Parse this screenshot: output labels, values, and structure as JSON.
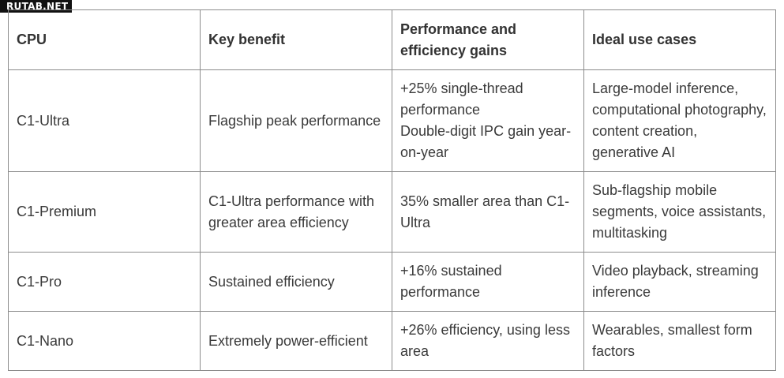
{
  "watermark": "RUTAB.NET",
  "table": {
    "headers": {
      "cpu": "CPU",
      "key_benefit": "Key benefit",
      "gains": "Performance and efficiency gains",
      "use_cases": "Ideal use cases"
    },
    "rows": [
      {
        "cpu": "C1-Ultra",
        "key_benefit": "Flagship peak performance",
        "gains": [
          "+25% single-thread performance",
          "Double-digit IPC gain year-on-year"
        ],
        "use_cases": "Large-model inference, computational photography, content creation, generative AI"
      },
      {
        "cpu": "C1-Premium",
        "key_benefit": "C1-Ultra performance with greater area efficiency",
        "gains": [
          "35% smaller area than C1-Ultra"
        ],
        "use_cases": "Sub-flagship mobile segments, voice assistants, multitasking"
      },
      {
        "cpu": "C1-Pro",
        "key_benefit": "Sustained efficiency",
        "gains": [
          "+16% sustained performance"
        ],
        "use_cases": "Video playback, streaming inference"
      },
      {
        "cpu": "C1-Nano",
        "key_benefit": "Extremely power-efficient",
        "gains": [
          "+26% efficiency, using less area"
        ],
        "use_cases": "Wearables, smallest form factors"
      }
    ]
  }
}
